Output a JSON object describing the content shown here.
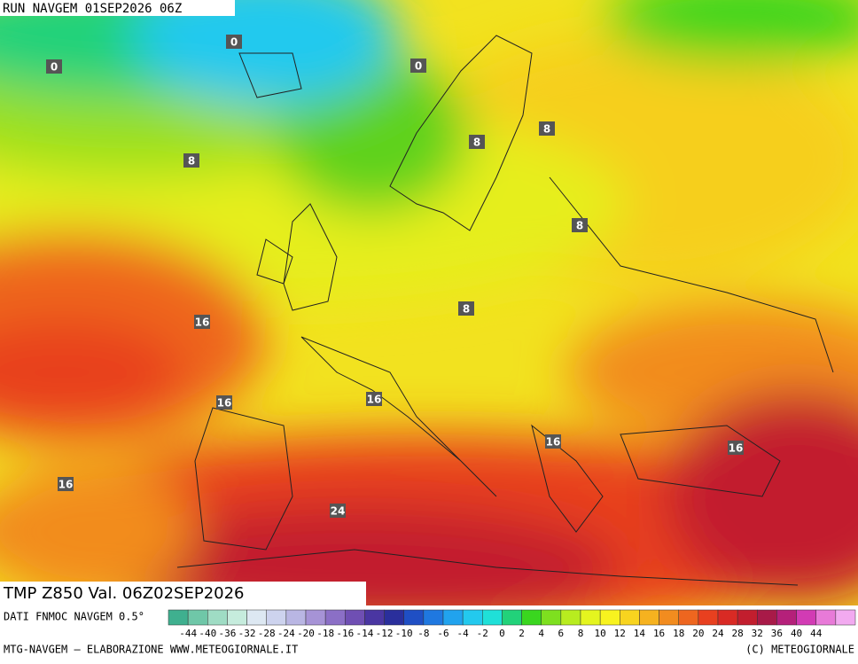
{
  "header": {
    "title": "RUN NAVGEM 01SEP2026 06Z"
  },
  "map": {
    "contour_labels": [
      0,
      0,
      0,
      8,
      8,
      8,
      8,
      8,
      16,
      16,
      16,
      16,
      16,
      16,
      24
    ]
  },
  "product": "TMP  Z850  Val.  06Z02SEP2026",
  "legend": {
    "source": "DATI FNMOC NAVGEM 0.5°",
    "ticks": [
      -44,
      -40,
      -36,
      -32,
      -28,
      -24,
      -20,
      -18,
      -16,
      -14,
      -12,
      -10,
      -8,
      -6,
      -4,
      -2,
      0,
      2,
      4,
      6,
      8,
      10,
      12,
      14,
      16,
      18,
      20,
      24,
      28,
      32,
      36,
      40,
      44
    ],
    "colors": [
      "#3fb08f",
      "#6fc7a8",
      "#9fdcc4",
      "#c6ecdd",
      "#dde8f2",
      "#cdd3ee",
      "#b9b6e3",
      "#a693d6",
      "#8b6fc6",
      "#6f4fb3",
      "#4a36a2",
      "#2a2f9c",
      "#1f4fc4",
      "#1f78e0",
      "#21a3ee",
      "#23c9ee",
      "#1fe0d8",
      "#22d27a",
      "#3ad61f",
      "#7ee01f",
      "#b8ec1f",
      "#e4f51f",
      "#f8f31f",
      "#f8d41f",
      "#f6b21f",
      "#f28c1f",
      "#ee661f",
      "#e8401f",
      "#d92a24",
      "#c21e2e",
      "#a81a48",
      "#b5207a",
      "#d23bb4",
      "#e87ad8",
      "#f2aaf0"
    ]
  },
  "footer": {
    "credit": "MTG-NAVGEM — ELABORAZIONE WWW.METEOGIORNALE.IT",
    "copyright": "(C) METEOGIORNALE"
  }
}
